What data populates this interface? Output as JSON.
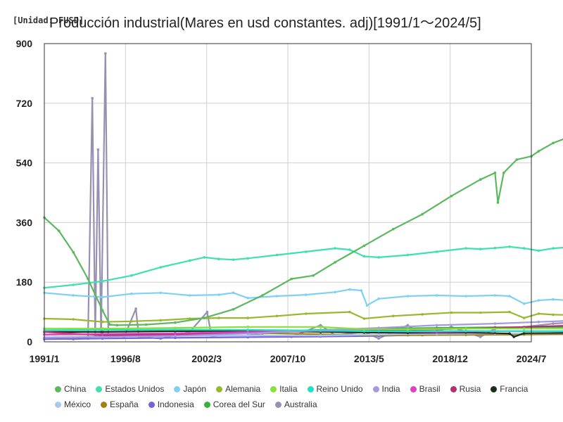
{
  "header": {
    "unit_label": "[Unidad: FUSD]",
    "title": "Producción industrial(Mares en usd constantes. adj)[1991/1〜2024/5]"
  },
  "chart_data": {
    "type": "line",
    "title": "Producción industrial(Mares en usd constantes. adj)[1991/1〜2024/5]",
    "unit": "[Unidad: FUSD]",
    "xlabel": "",
    "ylabel": "",
    "x_range": [
      "1991/1",
      "2024/7"
    ],
    "x_ticks": [
      "1991/1",
      "1996/8",
      "2002/3",
      "2007/10",
      "2013/5",
      "2018/12",
      "2024/7"
    ],
    "ylim": [
      0,
      900
    ],
    "y_ticks": [
      0,
      180,
      360,
      540,
      720,
      900
    ],
    "grid": true,
    "legend_position": "bottom",
    "series": [
      {
        "name": "China",
        "color": "#5cb85c",
        "points": [
          [
            1991.0,
            375
          ],
          [
            1992.0,
            335
          ],
          [
            1993.0,
            270
          ],
          [
            1994.0,
            190
          ],
          [
            1995.0,
            95
          ],
          [
            1995.5,
            52
          ],
          [
            1996.0,
            50
          ],
          [
            1998.0,
            52
          ],
          [
            2000.0,
            58
          ],
          [
            2002.0,
            72
          ],
          [
            2004.0,
            98
          ],
          [
            2006.0,
            140
          ],
          [
            2008.0,
            190
          ],
          [
            2009.5,
            200
          ],
          [
            2011.0,
            240
          ],
          [
            2013.0,
            290
          ],
          [
            2015.0,
            340
          ],
          [
            2017.0,
            385
          ],
          [
            2019.0,
            440
          ],
          [
            2021.0,
            490
          ],
          [
            2022.0,
            510
          ],
          [
            2022.2,
            420
          ],
          [
            2022.6,
            510
          ],
          [
            2023.5,
            550
          ],
          [
            2024.5,
            560
          ],
          [
            2025.0,
            575
          ],
          [
            2026.0,
            600
          ],
          [
            2027.5,
            625
          ],
          [
            2028.0,
            630
          ]
        ]
      },
      {
        "name": "Estados Unidos",
        "color": "#3ee0b0",
        "points": [
          [
            1991.0,
            163
          ],
          [
            1993.0,
            172
          ],
          [
            1995.0,
            183
          ],
          [
            1997.0,
            200
          ],
          [
            1999.0,
            225
          ],
          [
            2001.0,
            245
          ],
          [
            2002.0,
            255
          ],
          [
            2003.0,
            250
          ],
          [
            2004.0,
            248
          ],
          [
            2005.0,
            252
          ],
          [
            2007.0,
            262
          ],
          [
            2009.0,
            272
          ],
          [
            2011.0,
            282
          ],
          [
            2012.0,
            278
          ],
          [
            2013.0,
            258
          ],
          [
            2014.0,
            255
          ],
          [
            2016.0,
            262
          ],
          [
            2018.0,
            272
          ],
          [
            2020.0,
            282
          ],
          [
            2021.0,
            280
          ],
          [
            2022.0,
            283
          ],
          [
            2023.0,
            287
          ],
          [
            2024.0,
            282
          ],
          [
            2025.0,
            275
          ],
          [
            2026.0,
            282
          ],
          [
            2027.0,
            285
          ],
          [
            2028.0,
            283
          ]
        ]
      },
      {
        "name": "Japón",
        "color": "#7fd0f5",
        "points": [
          [
            1991.0,
            148
          ],
          [
            1993.0,
            140
          ],
          [
            1995.0,
            135
          ],
          [
            1997.0,
            145
          ],
          [
            1999.0,
            148
          ],
          [
            2001.0,
            140
          ],
          [
            2003.0,
            142
          ],
          [
            2004.0,
            148
          ],
          [
            2005.0,
            132
          ],
          [
            2007.0,
            138
          ],
          [
            2009.0,
            142
          ],
          [
            2011.0,
            150
          ],
          [
            2012.0,
            158
          ],
          [
            2012.8,
            155
          ],
          [
            2013.2,
            110
          ],
          [
            2014.0,
            130
          ],
          [
            2016.0,
            138
          ],
          [
            2018.0,
            140
          ],
          [
            2020.0,
            138
          ],
          [
            2022.0,
            140
          ],
          [
            2023.0,
            138
          ],
          [
            2024.0,
            115
          ],
          [
            2025.0,
            125
          ],
          [
            2026.0,
            128
          ],
          [
            2027.0,
            125
          ],
          [
            2028.0,
            125
          ]
        ]
      },
      {
        "name": "Alemania",
        "color": "#99b830",
        "points": [
          [
            1991.0,
            70
          ],
          [
            1993.0,
            68
          ],
          [
            1995.0,
            60
          ],
          [
            1997.0,
            62
          ],
          [
            1999.0,
            65
          ],
          [
            2001.0,
            70
          ],
          [
            2003.0,
            72
          ],
          [
            2005.0,
            72
          ],
          [
            2007.0,
            78
          ],
          [
            2009.0,
            85
          ],
          [
            2012.0,
            90
          ],
          [
            2013.0,
            70
          ],
          [
            2015.0,
            78
          ],
          [
            2017.0,
            83
          ],
          [
            2019.0,
            88
          ],
          [
            2021.0,
            88
          ],
          [
            2023.0,
            90
          ],
          [
            2024.0,
            72
          ],
          [
            2025.0,
            85
          ],
          [
            2026.0,
            82
          ],
          [
            2028.0,
            80
          ]
        ]
      },
      {
        "name": "Italia",
        "color": "#88e03a",
        "points": [
          [
            1991.0,
            40
          ],
          [
            1995.0,
            40
          ],
          [
            2000.0,
            42
          ],
          [
            2005.0,
            45
          ],
          [
            2010.0,
            45
          ],
          [
            2013.0,
            38
          ],
          [
            2016.0,
            38
          ],
          [
            2020.0,
            40
          ],
          [
            2024.0,
            40
          ],
          [
            2028.0,
            40
          ]
        ]
      },
      {
        "name": "Reino Unido",
        "color": "#22e0c8",
        "points": [
          [
            1991.0,
            35
          ],
          [
            1995.0,
            36
          ],
          [
            2000.0,
            37
          ],
          [
            2005.0,
            36
          ],
          [
            2010.0,
            34
          ],
          [
            2013.0,
            32
          ],
          [
            2016.0,
            32
          ],
          [
            2020.0,
            33
          ],
          [
            2024.0,
            32
          ],
          [
            2028.0,
            32
          ]
        ]
      },
      {
        "name": "India",
        "color": "#a898e0",
        "points": [
          [
            1991.0,
            12
          ],
          [
            1995.0,
            15
          ],
          [
            2000.0,
            18
          ],
          [
            2005.0,
            25
          ],
          [
            2010.0,
            35
          ],
          [
            2014.0,
            42
          ],
          [
            2018.0,
            50
          ],
          [
            2022.0,
            55
          ],
          [
            2025.0,
            60
          ],
          [
            2028.0,
            65
          ]
        ]
      },
      {
        "name": "Brasil",
        "color": "#e040c0",
        "points": [
          [
            1991.0,
            22
          ],
          [
            1995.0,
            24
          ],
          [
            2000.0,
            26
          ],
          [
            2005.0,
            30
          ],
          [
            2010.0,
            34
          ],
          [
            2014.0,
            32
          ],
          [
            2018.0,
            30
          ],
          [
            2022.0,
            32
          ],
          [
            2028.0,
            32
          ]
        ]
      },
      {
        "name": "Rusia",
        "color": "#b03070",
        "points": [
          [
            1991.0,
            30
          ],
          [
            1995.0,
            20
          ],
          [
            2000.0,
            22
          ],
          [
            2005.0,
            28
          ],
          [
            2010.0,
            32
          ],
          [
            2014.0,
            34
          ],
          [
            2018.0,
            38
          ],
          [
            2022.0,
            42
          ],
          [
            2028.0,
            50
          ]
        ]
      },
      {
        "name": "Francia",
        "color": "#1a2e1a",
        "points": [
          [
            1991.0,
            30
          ],
          [
            1995.0,
            30
          ],
          [
            2000.0,
            32
          ],
          [
            2005.0,
            33
          ],
          [
            2010.0,
            30
          ],
          [
            2013.0,
            28
          ],
          [
            2016.0,
            27
          ],
          [
            2020.0,
            28
          ],
          [
            2023.0,
            25
          ],
          [
            2023.3,
            15
          ],
          [
            2024.0,
            26
          ],
          [
            2028.0,
            27
          ]
        ]
      },
      {
        "name": "México",
        "color": "#a8c8f0",
        "points": [
          [
            1991.0,
            14
          ],
          [
            1995.0,
            15
          ],
          [
            2000.0,
            18
          ],
          [
            2005.0,
            19
          ],
          [
            2010.0,
            19
          ],
          [
            2014.0,
            22
          ],
          [
            2018.0,
            24
          ],
          [
            2022.0,
            25
          ],
          [
            2028.0,
            26
          ]
        ]
      },
      {
        "name": "España",
        "color": "#a08010",
        "points": [
          [
            1991.0,
            22
          ],
          [
            1995.0,
            22
          ],
          [
            2000.0,
            25
          ],
          [
            2005.0,
            27
          ],
          [
            2010.0,
            23
          ],
          [
            2013.0,
            20
          ],
          [
            2016.0,
            20
          ],
          [
            2020.0,
            21
          ],
          [
            2024.0,
            22
          ],
          [
            2028.0,
            23
          ]
        ]
      },
      {
        "name": "Indonesia",
        "color": "#7860d8",
        "points": [
          [
            1991.0,
            8
          ],
          [
            1995.0,
            10
          ],
          [
            2000.0,
            12
          ],
          [
            2005.0,
            14
          ],
          [
            2010.0,
            16
          ],
          [
            2014.0,
            18
          ],
          [
            2018.0,
            22
          ],
          [
            2022.0,
            24
          ],
          [
            2028.0,
            28
          ]
        ]
      },
      {
        "name": "Corea del Sur",
        "color": "#3ab040",
        "points": [
          [
            1991.0,
            12
          ],
          [
            1995.0,
            16
          ],
          [
            2000.0,
            22
          ],
          [
            2005.0,
            28
          ],
          [
            2010.0,
            36
          ],
          [
            2014.0,
            40
          ],
          [
            2018.0,
            42
          ],
          [
            2022.0,
            44
          ],
          [
            2028.0,
            45
          ]
        ]
      },
      {
        "name": "Australia",
        "color": "#9890b0",
        "points": [
          [
            1991.0,
            10
          ],
          [
            1993.0,
            8
          ],
          [
            1994.0,
            10
          ],
          [
            1994.3,
            735
          ],
          [
            1994.5,
            20
          ],
          [
            1994.7,
            580
          ],
          [
            1994.9,
            20
          ],
          [
            1995.2,
            870
          ],
          [
            1995.4,
            20
          ],
          [
            1996.5,
            15
          ],
          [
            1997.3,
            100
          ],
          [
            1997.5,
            15
          ],
          [
            1999.0,
            10
          ],
          [
            2001.0,
            30
          ],
          [
            2002.2,
            90
          ],
          [
            2002.5,
            15
          ],
          [
            2004.0,
            30
          ],
          [
            2006.0,
            20
          ],
          [
            2008.0,
            15
          ],
          [
            2010.0,
            50
          ],
          [
            2011.0,
            20
          ],
          [
            2013.0,
            30
          ],
          [
            2014.0,
            10
          ],
          [
            2016.0,
            50
          ],
          [
            2017.0,
            20
          ],
          [
            2019.0,
            45
          ],
          [
            2021.0,
            15
          ],
          [
            2022.0,
            40
          ],
          [
            2024.0,
            45
          ],
          [
            2026.0,
            55
          ],
          [
            2028.0,
            60
          ]
        ]
      }
    ]
  },
  "legend": {
    "rows": [
      [
        "China",
        "Estados Unidos",
        "Japón",
        "Alemania",
        "Italia",
        "Reino Unido",
        "India",
        "Brasil",
        "Rusia",
        "Francia"
      ],
      [
        "México",
        "España",
        "Indonesia",
        "Corea del Sur",
        "Australia"
      ]
    ]
  }
}
